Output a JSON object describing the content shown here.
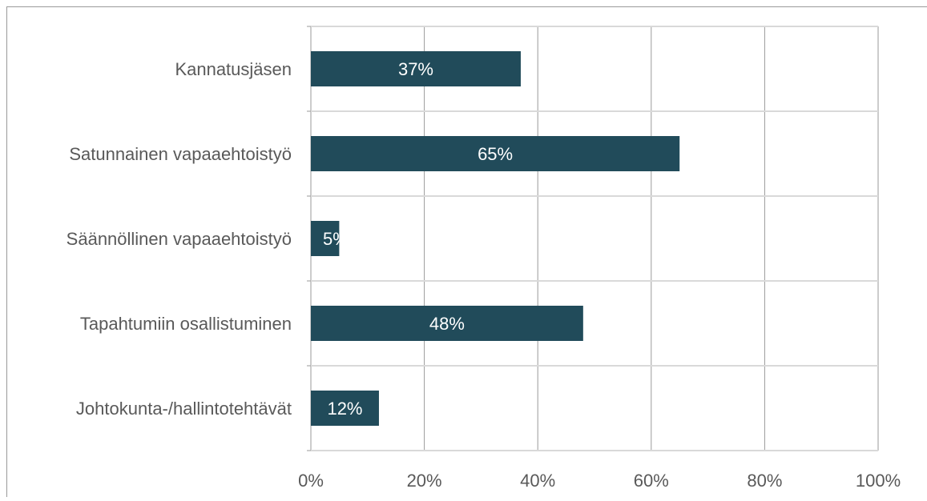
{
  "chart_data": {
    "type": "bar",
    "orientation": "horizontal",
    "categories": [
      "Kannatusjäsen",
      "Satunnainen vapaaehtoistyö",
      "Säännöllinen vapaaehtoistyö",
      "Tapahtumiin osallistuminen",
      "Johtokunta-/hallintotehtävät"
    ],
    "values": [
      37,
      65,
      5,
      48,
      12
    ],
    "data_labels": [
      "37%",
      "65%",
      "5%",
      "48%",
      "12%"
    ],
    "x_ticks": [
      "0%",
      "20%",
      "40%",
      "60%",
      "80%",
      "100%"
    ],
    "xlim": [
      0,
      100
    ],
    "title": "",
    "xlabel": "",
    "ylabel": "",
    "grid": true,
    "legend": "none",
    "colors": {
      "bar": "#214b5a",
      "bar_label": "#ffffff",
      "category_text": "#595959",
      "tick_text": "#595959",
      "vertical_grid": "#9a9a9a",
      "horizontal_separator": "#d9d9d9",
      "frame": "#9a9a9a"
    }
  }
}
